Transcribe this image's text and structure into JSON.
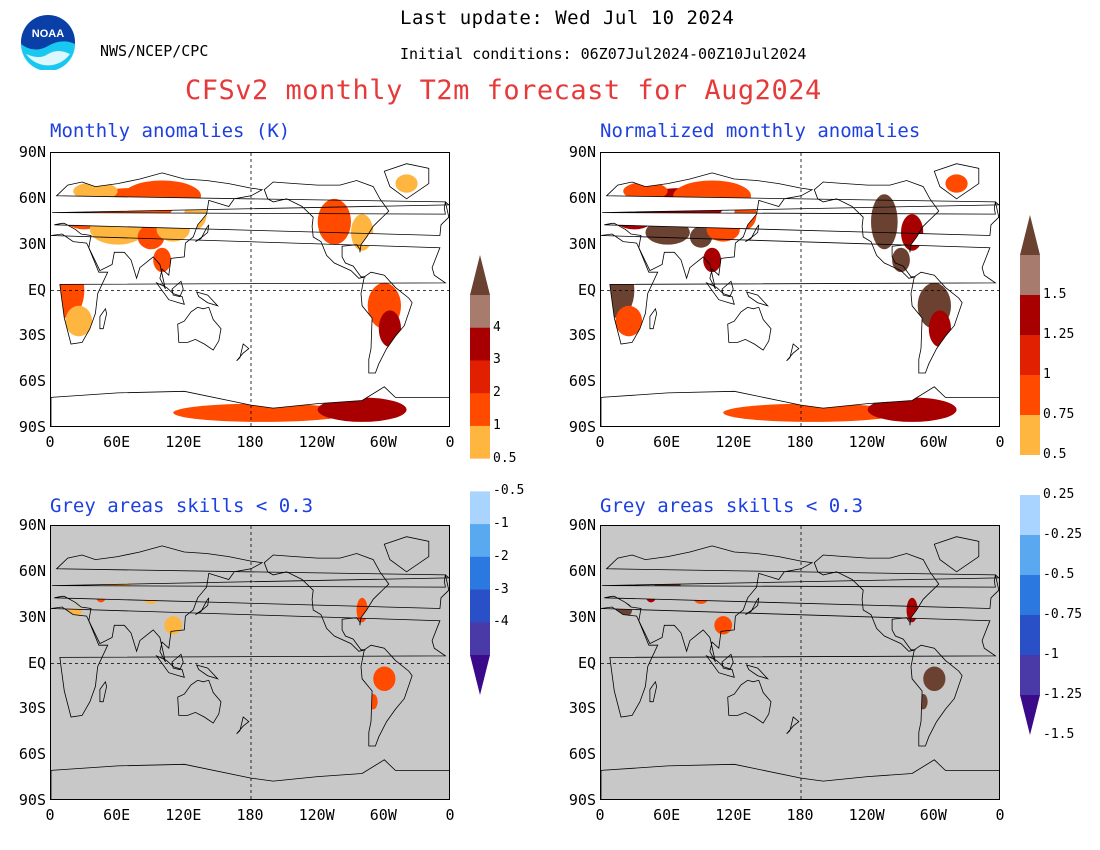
{
  "header": {
    "last_update": "Last update: Wed Jul 10 2024",
    "initial_conditions": "Initial conditions: 06Z07Jul2024-00Z10Jul2024",
    "org": "NWS/NCEP/CPC",
    "title": "CFSv2 monthly T2m forecast for Aug2024",
    "logo_text": "NOAA"
  },
  "panels": {
    "top_left": {
      "title": "Monthly anomalies (K)"
    },
    "top_right": {
      "title": "Normalized monthly anomalies"
    },
    "bottom_left": {
      "title": "Grey areas skills < 0.3"
    },
    "bottom_right": {
      "title": "Grey areas skills < 0.3"
    }
  },
  "axes": {
    "lat_labels": [
      "90N",
      "60N",
      "30N",
      "EQ",
      "30S",
      "60S",
      "90S"
    ],
    "lon_labels": [
      "0",
      "60E",
      "120E",
      "180",
      "120W",
      "60W",
      "0"
    ]
  },
  "colorbars": {
    "anomaly_K": [
      "4",
      "3",
      "2",
      "1",
      "0.5",
      "-0.5",
      "-1",
      "-2",
      "-3",
      "-4"
    ],
    "normalized": [
      "1.5",
      "1.25",
      "1",
      "0.75",
      "0.5",
      "0.25",
      "-0.25",
      "-0.5",
      "-0.75",
      "-1",
      "-1.25",
      "-1.5"
    ],
    "colors": [
      "#6b4232",
      "#a87b6f",
      "#a80000",
      "#e02000",
      "#ff4a00",
      "#ffb640",
      "#ffffff",
      "#a8d4ff",
      "#5aa8f0",
      "#2a78e0",
      "#2a50c8",
      "#4a3aa8",
      "#3a0a8a"
    ]
  },
  "colors": {
    "title_red": "#e63a3a",
    "panel_title_blue": "#1e40e0",
    "skill_mask_grey": "#c8c8c8",
    "warm_light": "#ffb640",
    "warm_mid": "#ff4a00",
    "warm_dark": "#a80000",
    "warm_brown": "#6b4232"
  }
}
